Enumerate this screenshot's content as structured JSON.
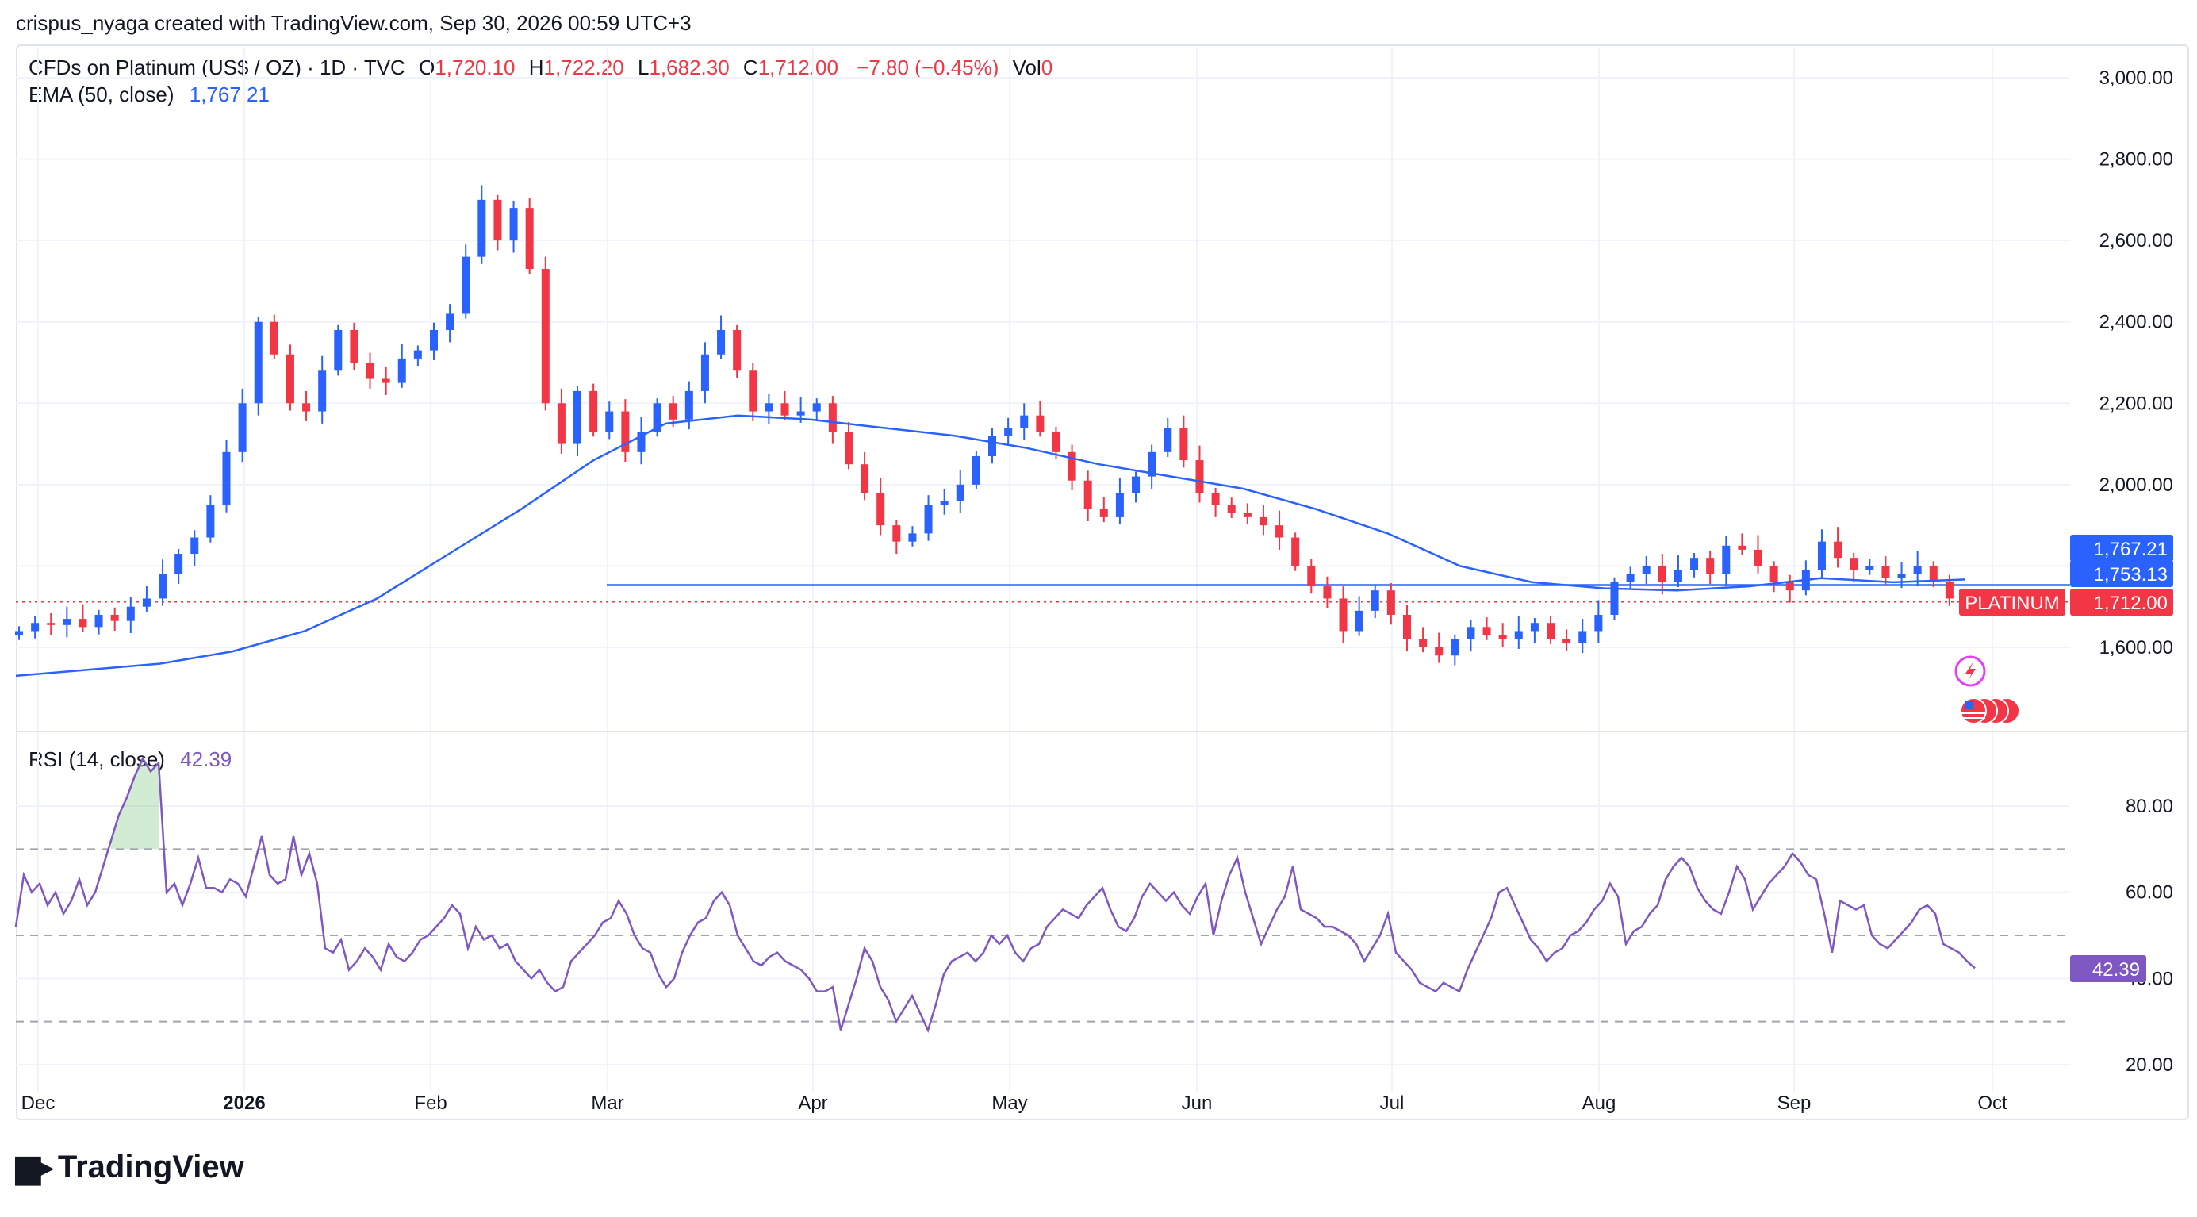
{
  "header": {
    "text": "crispus_nyaga created with TradingView.com, Sep 30, 2026 00:59 UTC+3"
  },
  "legend": {
    "symbol": "CFDs on Platinum (US$ / OZ) · 1D · TVC",
    "o_label": "O",
    "o_value": "1,720.10",
    "h_label": "H",
    "h_value": "1,722.20",
    "l_label": "L",
    "l_value": "1,682.30",
    "c_label": "C",
    "c_value": "1,712.00",
    "change": "−7.80 (−0.45%)",
    "vol_label": "Vol",
    "vol_value": "0",
    "ema_label": "EMA (50, close)",
    "ema_value": "1,767.21",
    "rsi_label": "RSI (14, close)",
    "rsi_value": "42.39"
  },
  "price_badges": {
    "ema": "1,767.21",
    "support": "1,753.13",
    "symbol_tag": "PLATINUM",
    "last": "1,712.00",
    "rsi": "42.39"
  },
  "colors": {
    "up": "#2962ff",
    "down": "#f23645",
    "ema": "#2962ff",
    "rsi": "#7e57c2",
    "grid": "#f0f3fa"
  },
  "footer": {
    "brand": "TradingView"
  },
  "chart_data": [
    {
      "type": "candlestick",
      "title": "CFDs on Platinum (US$ / OZ) · 1D · TVC",
      "x_tick_labels": [
        "Dec",
        "2026",
        "Feb",
        "Mar",
        "Apr",
        "May",
        "Jun",
        "Jul",
        "Aug",
        "Sep",
        "Oct"
      ],
      "y_tick_labels": [
        "3,000.00",
        "2,800.00",
        "2,600.00",
        "2,400.00",
        "2,200.00",
        "2,000.00",
        "1,600.00"
      ],
      "ylim": [
        1380,
        3080
      ],
      "horizontal_line": 1753.13,
      "last_price": 1712.0,
      "ema_last": 1767.21,
      "series": [
        {
          "name": "close",
          "values": [
            1640,
            1660,
            1655,
            1670,
            1650,
            1680,
            1665,
            1700,
            1720,
            1780,
            1830,
            1870,
            1950,
            2080,
            2200,
            2400,
            2320,
            2200,
            2180,
            2280,
            2380,
            2300,
            2260,
            2250,
            2310,
            2330,
            2380,
            2420,
            2560,
            2700,
            2600,
            2680,
            2530,
            2200,
            2100,
            2230,
            2130,
            2180,
            2080,
            2130,
            2200,
            2160,
            2230,
            2320,
            2380,
            2280,
            2180,
            2200,
            2170,
            2180,
            2200,
            2130,
            2050,
            1980,
            1900,
            1860,
            1880,
            1950,
            1960,
            2000,
            2070,
            2120,
            2140,
            2170,
            2130,
            2080,
            2010,
            1940,
            1920,
            1980,
            2020,
            2080,
            2140,
            2060,
            1980,
            1950,
            1930,
            1920,
            1900,
            1870,
            1800,
            1750,
            1720,
            1640,
            1690,
            1740,
            1680,
            1620,
            1600,
            1580,
            1620,
            1650,
            1630,
            1620,
            1640,
            1660,
            1620,
            1610,
            1640,
            1680,
            1760,
            1780,
            1800,
            1760,
            1790,
            1820,
            1780,
            1850,
            1840,
            1800,
            1760,
            1740,
            1790,
            1860,
            1820,
            1790,
            1800,
            1770,
            1780,
            1800,
            1760,
            1720,
            1712
          ]
        },
        {
          "name": "EMA (50, close)",
          "values": [
            1530,
            1545,
            1560,
            1590,
            1640,
            1720,
            1830,
            1940,
            2060,
            2150,
            2170,
            2160,
            2140,
            2120,
            2090,
            2050,
            2020,
            1990,
            1940,
            1880,
            1800,
            1760,
            1745,
            1740,
            1750,
            1770,
            1760,
            1767
          ]
        }
      ]
    },
    {
      "type": "line",
      "title": "RSI (14, close)",
      "y_tick_labels": [
        "80.00",
        "60.00",
        "40.00",
        "20.00"
      ],
      "ylim": [
        15,
        95
      ],
      "levels": [
        70,
        50,
        30
      ],
      "series": [
        {
          "name": "RSI (14, close)",
          "values": [
            52,
            64,
            60,
            62,
            57,
            60,
            55,
            58,
            63,
            57,
            60,
            66,
            72,
            78,
            82,
            87,
            91,
            88,
            90,
            60,
            62,
            57,
            62,
            68,
            61,
            61,
            60,
            63,
            62,
            59,
            66,
            73,
            64,
            62,
            63,
            73,
            64,
            69,
            62,
            47,
            46,
            49,
            42,
            44,
            47,
            45,
            42,
            48,
            45,
            44,
            46,
            49,
            50,
            52,
            54,
            57,
            55,
            47,
            52,
            49,
            50,
            47,
            48,
            44,
            42,
            40,
            42,
            39,
            37,
            38,
            44,
            46,
            48,
            50,
            53,
            54,
            58,
            55,
            50,
            47,
            46,
            41,
            38,
            40,
            46,
            50,
            53,
            54,
            58,
            60,
            57,
            50,
            47,
            44,
            43,
            45,
            46,
            44,
            43,
            42,
            40,
            37,
            37,
            38,
            28,
            34,
            40,
            47,
            44,
            38,
            35,
            30,
            33,
            36,
            32,
            28,
            34,
            41,
            44,
            45,
            46,
            44,
            46,
            50,
            48,
            50,
            46,
            44,
            47,
            48,
            52,
            54,
            56,
            55,
            54,
            57,
            59,
            61,
            56,
            52,
            51,
            54,
            59,
            62,
            60,
            58,
            60,
            57,
            55,
            59,
            62,
            50,
            58,
            64,
            68,
            60,
            54,
            48,
            52,
            56,
            59,
            66,
            56,
            55,
            54,
            52,
            52,
            51,
            50,
            48,
            44,
            47,
            50,
            55,
            46,
            44,
            42,
            39,
            38,
            37,
            39,
            38,
            37,
            42,
            46,
            50,
            54,
            60,
            61,
            57,
            53,
            49,
            47,
            44,
            46,
            47,
            50,
            51,
            53,
            56,
            58,
            62,
            59,
            48,
            51,
            52,
            55,
            57,
            63,
            66,
            68,
            66,
            61,
            58,
            56,
            55,
            60,
            66,
            63,
            56,
            59,
            62,
            64,
            66,
            69,
            67,
            64,
            63,
            55,
            46,
            58,
            57,
            56,
            57,
            50,
            48,
            47,
            49,
            51,
            53,
            56,
            57,
            55,
            48,
            47,
            46,
            44,
            42.39
          ]
        }
      ]
    }
  ]
}
